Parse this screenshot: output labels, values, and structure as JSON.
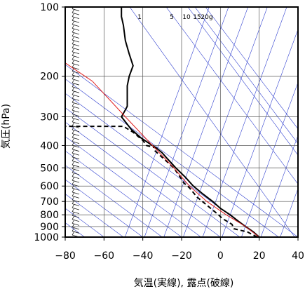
{
  "chart_data": {
    "type": "line",
    "title": "",
    "xlabel": "気温(実線), 露点(破線)",
    "ylabel": "気圧(hPa)",
    "x_range": [
      -80,
      40
    ],
    "y_range_hPa": [
      1000,
      100
    ],
    "y_scale": "log",
    "grid": true,
    "x_ticks": [
      -80,
      -60,
      -40,
      -20,
      0,
      20,
      40
    ],
    "x_tick_labels": [
      "−80",
      "−60",
      "−40",
      "−20",
      "0",
      "20",
      "40"
    ],
    "y_ticks": [
      1000,
      900,
      800,
      700,
      600,
      500,
      400,
      300,
      200,
      100
    ],
    "y_tick_labels": [
      "1000",
      "900",
      "800",
      "700",
      "600",
      "500",
      "400",
      "300",
      "200",
      "100"
    ],
    "mixing_ratio_labels": [
      "1",
      "5",
      "10",
      "15",
      "20g"
    ],
    "series": [
      {
        "style": "solid",
        "color": "#000000",
        "points": [
          [
            20,
            1000
          ],
          [
            17,
            950
          ],
          [
            13,
            900
          ],
          [
            9,
            850
          ],
          [
            5,
            800
          ],
          [
            0,
            750
          ],
          [
            -4,
            700
          ],
          [
            -9,
            650
          ],
          [
            -14,
            600
          ],
          [
            -18,
            550
          ],
          [
            -23,
            500
          ],
          [
            -28,
            450
          ],
          [
            -30,
            430
          ],
          [
            -33,
            410
          ],
          [
            -35,
            400
          ],
          [
            -41,
            370
          ],
          [
            -46,
            340
          ],
          [
            -51,
            300
          ],
          [
            -49,
            280
          ],
          [
            -48,
            270
          ],
          [
            -48,
            250
          ],
          [
            -48,
            220
          ],
          [
            -47,
            200
          ],
          [
            -45,
            180
          ],
          [
            -47,
            160
          ],
          [
            -49,
            140
          ],
          [
            -50,
            120
          ],
          [
            -51,
            110
          ],
          [
            -51,
            100
          ]
        ]
      },
      {
        "style": "dashed",
        "color": "#000000",
        "points": [
          [
            19,
            1000
          ],
          [
            14,
            950
          ],
          [
            7,
            920
          ],
          [
            6,
            880
          ],
          [
            1,
            830
          ],
          [
            -1,
            800
          ],
          [
            -5,
            750
          ],
          [
            -12,
            670
          ],
          [
            -16,
            610
          ],
          [
            -19,
            580
          ],
          [
            -20,
            560
          ],
          [
            -24,
            500
          ],
          [
            -30,
            450
          ],
          [
            -34,
            420
          ],
          [
            -33,
            410
          ],
          [
            -38,
            400
          ],
          [
            -40,
            380
          ],
          [
            -45,
            350
          ],
          [
            -50,
            330
          ],
          [
            -80,
            330
          ]
        ]
      },
      {
        "style": "solid",
        "color": "#e02020",
        "points": [
          [
            20,
            1000
          ],
          [
            13,
            900
          ],
          [
            3,
            800
          ],
          [
            -7,
            700
          ],
          [
            -16,
            600
          ],
          [
            -24,
            500
          ],
          [
            -35,
            400
          ],
          [
            -49,
            300
          ],
          [
            -66,
            210
          ],
          [
            -80,
            175
          ]
        ]
      }
    ],
    "wind_barbs": "left margin, surface to 100 hPa"
  }
}
